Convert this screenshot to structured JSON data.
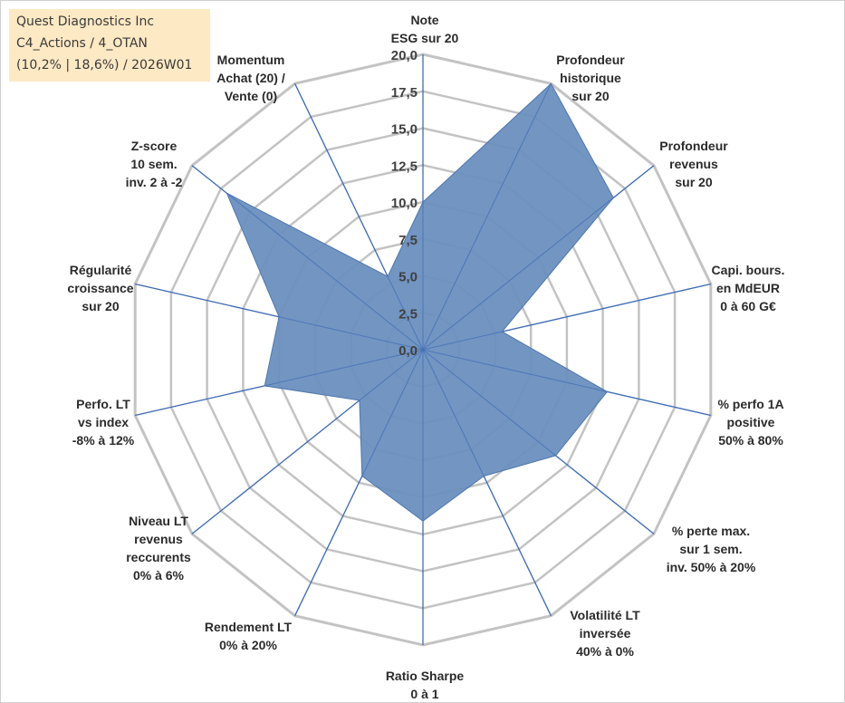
{
  "info": {
    "company": "Quest Diagnostics Inc",
    "portfolio": "C4_Actions / 4_OTAN",
    "stats": "(10,2% | 18,6%) / 2026W01"
  },
  "chart_data": {
    "type": "radar",
    "title": "Quest Diagnostics Inc",
    "rlim": [
      0,
      20
    ],
    "ticks": [
      "0,0",
      "2,5",
      "5,0",
      "7,5",
      "10,0",
      "12,5",
      "15,0",
      "17,5",
      "20,0"
    ],
    "categories": [
      [
        "Note",
        "ESG sur 20"
      ],
      [
        "Profondeur",
        "historique",
        "sur 20"
      ],
      [
        "Profondeur",
        "revenus",
        "sur 20"
      ],
      [
        "Capi. bours.",
        "en MdEUR",
        "0 à 60 G€"
      ],
      [
        "% perfo 1A",
        "positive",
        "50% à 80%"
      ],
      [
        "% perte max.",
        "sur 1 sem.",
        "inv. 50% à 20%"
      ],
      [
        "Volatilité LT",
        "inversée",
        "40% à 0%"
      ],
      [
        "Ratio Sharpe",
        "0 à 1"
      ],
      [
        "Rendement LT",
        "0% à 20%"
      ],
      [
        "Niveau LT",
        "revenus",
        "reccurents",
        "0% à 6%"
      ],
      [
        "Perfo. LT",
        "vs index",
        "-8% à 12%"
      ],
      [
        "Régularité",
        "croissance",
        "sur 20"
      ],
      [
        "Z-score",
        "10 sem.",
        "inv. 2 à -2"
      ],
      [
        "Momentum",
        "Achat (20) /",
        "Vente (0)"
      ]
    ],
    "series": [
      {
        "name": "Quest Diagnostics Inc",
        "values": [
          10,
          20,
          16.5,
          5.5,
          12.8,
          11.5,
          9.5,
          11.6,
          9.5,
          5.5,
          11,
          10,
          17,
          5.5
        ]
      }
    ],
    "colors": {
      "fill": "#6a8fbf",
      "stroke": "#4f77ad",
      "spokes": "#3f6cb5",
      "grid": "#c3c3c3"
    }
  }
}
